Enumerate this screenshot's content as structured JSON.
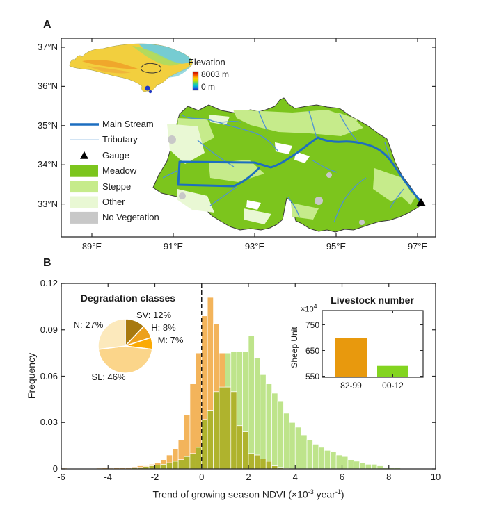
{
  "colors": {
    "frame": "#2b2b2b",
    "text": "#1a1a1a",
    "meadow": "#7CC51D",
    "steppe": "#C6EB8B",
    "other": "#E9F8D4",
    "no_vegetation": "#C8C8C8",
    "main_stream": "#1D6EC0",
    "tributary": "#4E92D5",
    "basin_outline": "#3a3a3a",
    "hist_orange": "#F3B45B",
    "hist_green": "#BEE48B",
    "hist_overlap": "#AFB32D",
    "gauge_black": "#000000"
  },
  "panel_a": {
    "label": "A",
    "x_ticks": [
      {
        "label": "89°E",
        "value": 89
      },
      {
        "label": "91°E",
        "value": 91
      },
      {
        "label": "93°E",
        "value": 93
      },
      {
        "label": "95°E",
        "value": 95
      },
      {
        "label": "97°E",
        "value": 97
      }
    ],
    "y_ticks": [
      {
        "label": "37°N",
        "value": 37
      },
      {
        "label": "36°N",
        "value": 36
      },
      {
        "label": "35°N",
        "value": 35
      },
      {
        "label": "34°N",
        "value": 34
      },
      {
        "label": "33°N",
        "value": 33
      }
    ],
    "legend": {
      "items": [
        {
          "name": "main-stream",
          "label": "Main Stream",
          "type": "line-thick",
          "color_key": "main_stream"
        },
        {
          "name": "tributary",
          "label": "Tributary",
          "type": "line-thin",
          "color_key": "tributary"
        },
        {
          "name": "gauge",
          "label": "Gauge",
          "type": "triangle",
          "color_key": "gauge_black"
        },
        {
          "name": "meadow",
          "label": "Meadow",
          "type": "patch",
          "color_key": "meadow"
        },
        {
          "name": "steppe",
          "label": "Steppe",
          "type": "patch",
          "color_key": "steppe"
        },
        {
          "name": "other",
          "label": "Other",
          "type": "patch",
          "color_key": "other"
        },
        {
          "name": "no-vegetation",
          "label": "No Vegetation",
          "type": "patch",
          "color_key": "no_vegetation"
        }
      ]
    },
    "inset_elevation": {
      "title": "Elevation",
      "max_label": "8003 m",
      "min_label": "0 m"
    }
  },
  "panel_b": {
    "label": "B",
    "ylabel": "Frequency",
    "xlabel_parts": {
      "pre": "Trend of growing season NDVI (×10",
      "sup1": "-3",
      "mid": " year",
      "sup2": "-1",
      "post": ")"
    },
    "x_ticks": [
      {
        "label": "-6",
        "value": -6
      },
      {
        "label": "-4",
        "value": -4
      },
      {
        "label": "-2",
        "value": -2
      },
      {
        "label": "0",
        "value": 0
      },
      {
        "label": "2",
        "value": 2
      },
      {
        "label": "4",
        "value": 4
      },
      {
        "label": "6",
        "value": 6
      },
      {
        "label": "8",
        "value": 8
      },
      {
        "label": "10",
        "value": 10
      }
    ],
    "y_ticks": [
      {
        "label": "0",
        "value": 0
      },
      {
        "label": "0.03",
        "value": 0.03
      },
      {
        "label": "0.06",
        "value": 0.06
      },
      {
        "label": "0.09",
        "value": 0.09
      },
      {
        "label": "0.12",
        "value": 0.12
      }
    ]
  },
  "chart_data": [
    {
      "type": "bar",
      "subtype": "overlaid-histogram",
      "title": "",
      "xlabel": "Trend of growing season NDVI (×10⁻³ year⁻¹)",
      "ylabel": "Frequency",
      "xlim": [
        -6,
        10
      ],
      "ylim": [
        0,
        0.12
      ],
      "x_tick_values": [
        -6,
        -4,
        -2,
        0,
        2,
        4,
        6,
        8,
        10
      ],
      "y_tick_values": [
        0,
        0.03,
        0.06,
        0.09,
        0.12
      ],
      "grid": false,
      "reference_line_x": 0,
      "bin_start": -6,
      "bin_width": 0.25,
      "series": [
        {
          "name": "orange_distribution",
          "color": "#F3B45B",
          "values": [
            0.0005,
            0,
            0,
            0,
            0,
            0,
            0.0005,
            0.001,
            0.0005,
            0.001,
            0.001,
            0.001,
            0.0015,
            0.002,
            0.002,
            0.003,
            0.004,
            0.006,
            0.009,
            0.013,
            0.019,
            0.035,
            0.055,
            0.075,
            0.099,
            0.111,
            0.094,
            0.075,
            0.053,
            0.05,
            0.028,
            0.024,
            0.01,
            0.009,
            0.0065,
            0.005,
            0.002,
            0.001,
            0.0005,
            0,
            0,
            0,
            0,
            0,
            0,
            0,
            0,
            0,
            0,
            0,
            0,
            0,
            0,
            0,
            0,
            0,
            0,
            0,
            0,
            0,
            0,
            0,
            0,
            0
          ]
        },
        {
          "name": "green_distribution",
          "color": "#BEE48B",
          "values": [
            0,
            0,
            0,
            0,
            0,
            0,
            0,
            0,
            0,
            0,
            0,
            0,
            0.001,
            0.001,
            0.0015,
            0.002,
            0.0025,
            0.003,
            0.004,
            0.005,
            0.006,
            0.008,
            0.01,
            0.014,
            0.032,
            0.038,
            0.05,
            0.053,
            0.075,
            0.076,
            0.076,
            0.076,
            0.086,
            0.072,
            0.061,
            0.055,
            0.049,
            0.044,
            0.036,
            0.03,
            0.027,
            0.022,
            0.019,
            0.016,
            0.014,
            0.012,
            0.011,
            0.009,
            0.008,
            0.006,
            0.005,
            0.004,
            0.003,
            0.003,
            0.002,
            0.001,
            0.001,
            0.001,
            0,
            0,
            0,
            0,
            0,
            0
          ]
        }
      ],
      "overlap_color": "#AFB32D"
    },
    {
      "type": "pie",
      "title": "Degradation classes",
      "start_angle_deg_from_top": 0,
      "direction": "clockwise",
      "slices": [
        {
          "name": "SV",
          "label": "SV: 12%",
          "value": 12,
          "color": "#A8790F"
        },
        {
          "name": "H",
          "label": "H: 8%",
          "value": 8,
          "color": "#ECA01C"
        },
        {
          "name": "M",
          "label": "M: 7%",
          "value": 7,
          "color": "#FBAA05"
        },
        {
          "name": "SL",
          "label": "SL: 46%",
          "value": 46,
          "color": "#FBD58A"
        },
        {
          "name": "N",
          "label": "N: 27%",
          "value": 27,
          "color": "#FCE9BC"
        }
      ]
    },
    {
      "type": "bar",
      "title": "Livestock number",
      "ylabel": "Sheep Unit",
      "scale_parts": {
        "base": "×10",
        "sup": "4"
      },
      "categories": [
        "82-99",
        "00-12"
      ],
      "values": [
        700,
        590
      ],
      "bar_colors": [
        "#E8990D",
        "#83D420"
      ],
      "ylim": [
        545,
        805
      ],
      "y_tick_values": [
        550,
        650,
        750
      ],
      "y_tick_labels": [
        "550",
        "650",
        "750"
      ]
    }
  ]
}
